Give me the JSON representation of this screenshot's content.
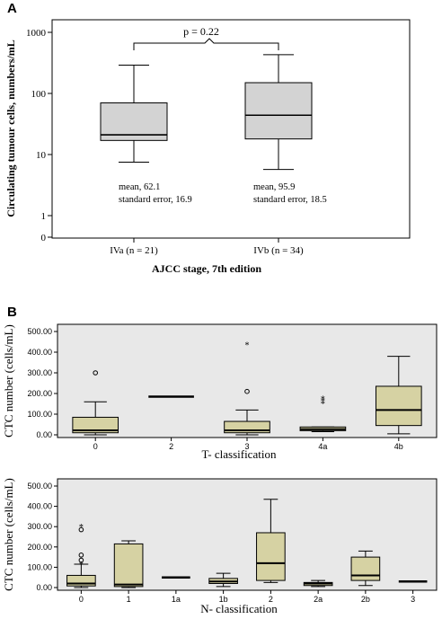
{
  "panel_a": {
    "letter": "A",
    "ylabel": "Circulating tumour cells, numbers/mL",
    "xlabel": "AJCC stage, 7th edition",
    "significance": "p = 0.22",
    "ytick_labels": [
      "0",
      "1",
      "10",
      "100",
      "1000"
    ],
    "annotations": [
      {
        "line1": "mean, 62.1",
        "line2": "standard error, 16.9"
      },
      {
        "line1": "mean, 95.9",
        "line2": "standard error, 18.5"
      }
    ]
  },
  "panel_b": {
    "letter": "B",
    "top": {
      "xlabel": "T- classification",
      "ylabel": "CTC number (cells/mL)"
    },
    "bottom": {
      "xlabel": "N- classification",
      "ylabel": "CTC number (cells/mL)"
    }
  },
  "chart_data": [
    {
      "type": "boxplot",
      "panel": "A",
      "yscale": "log",
      "ylim": [
        0,
        1000
      ],
      "categories": [
        "IVa (n = 21)",
        "IVb (n = 34)"
      ],
      "boxes": [
        {
          "min": 7.5,
          "q1": 17,
          "median": 21,
          "q3": 70,
          "max": 290
        },
        {
          "min": 5.7,
          "q1": 18,
          "median": 44,
          "q3": 150,
          "max": 430
        }
      ],
      "colors": {
        "box": "#d3d3d3",
        "plot_bg": "#ffffff"
      }
    },
    {
      "type": "boxplot",
      "panel": "B-top",
      "ylim": [
        0,
        500
      ],
      "yticks": [
        "0.00",
        "100.00",
        "200.00",
        "300.00",
        "400.00",
        "500.00"
      ],
      "categories": [
        "0",
        "2",
        "3",
        "4a",
        "4b"
      ],
      "boxes": [
        {
          "min": 0,
          "q1": 10,
          "median": 22,
          "q3": 85,
          "max": 160,
          "outliers": [
            {
              "value": 300,
              "symbol": "circle"
            }
          ]
        },
        {
          "min": 185,
          "q1": 185,
          "median": 185,
          "q3": 185,
          "max": 185,
          "outliers": []
        },
        {
          "min": 0,
          "q1": 10,
          "median": 22,
          "q3": 65,
          "max": 120,
          "outliers": [
            {
              "value": 210,
              "symbol": "circle"
            },
            {
              "value": 435,
              "symbol": "star"
            }
          ]
        },
        {
          "min": 15,
          "q1": 20,
          "median": 27,
          "q3": 38,
          "max": 38,
          "outliers": [
            {
              "value": 150,
              "symbol": "star"
            },
            {
              "value": 162,
              "symbol": "star"
            },
            {
              "value": 174,
              "symbol": "star"
            }
          ]
        },
        {
          "min": 5,
          "q1": 45,
          "median": 120,
          "q3": 235,
          "max": 380,
          "outliers": []
        }
      ],
      "colors": {
        "box": "#d6d2a3",
        "plot_bg": "#e8e8e8"
      }
    },
    {
      "type": "boxplot",
      "panel": "B-bottom",
      "ylim": [
        0,
        500
      ],
      "yticks": [
        "0.00",
        "100.00",
        "200.00",
        "300.00",
        "400.00",
        "500.00"
      ],
      "categories": [
        "0",
        "1",
        "1a",
        "1b",
        "2",
        "2a",
        "2b",
        "3"
      ],
      "boxes": [
        {
          "min": 0,
          "q1": 8,
          "median": 20,
          "q3": 60,
          "max": 115,
          "outliers": [
            {
              "value": 135,
              "symbol": "circle"
            },
            {
              "value": 160,
              "symbol": "circle"
            },
            {
              "value": 285,
              "symbol": "circle"
            },
            {
              "value": 298,
              "symbol": "star"
            },
            {
              "value": 112,
              "symbol": "star"
            }
          ]
        },
        {
          "min": 0,
          "q1": 5,
          "median": 15,
          "q3": 215,
          "max": 230,
          "outliers": []
        },
        {
          "min": 50,
          "q1": 50,
          "median": 50,
          "q3": 50,
          "max": 50,
          "outliers": []
        },
        {
          "min": 5,
          "q1": 20,
          "median": 30,
          "q3": 45,
          "max": 70,
          "outliers": []
        },
        {
          "min": 25,
          "q1": 35,
          "median": 120,
          "q3": 270,
          "max": 435,
          "outliers": []
        },
        {
          "min": 5,
          "q1": 10,
          "median": 20,
          "q3": 25,
          "max": 35,
          "outliers": []
        },
        {
          "min": 10,
          "q1": 35,
          "median": 60,
          "q3": 150,
          "max": 180,
          "outliers": []
        },
        {
          "min": 30,
          "q1": 30,
          "median": 30,
          "q3": 30,
          "max": 30,
          "outliers": []
        }
      ],
      "colors": {
        "box": "#d6d2a3",
        "plot_bg": "#e8e8e8"
      }
    }
  ]
}
